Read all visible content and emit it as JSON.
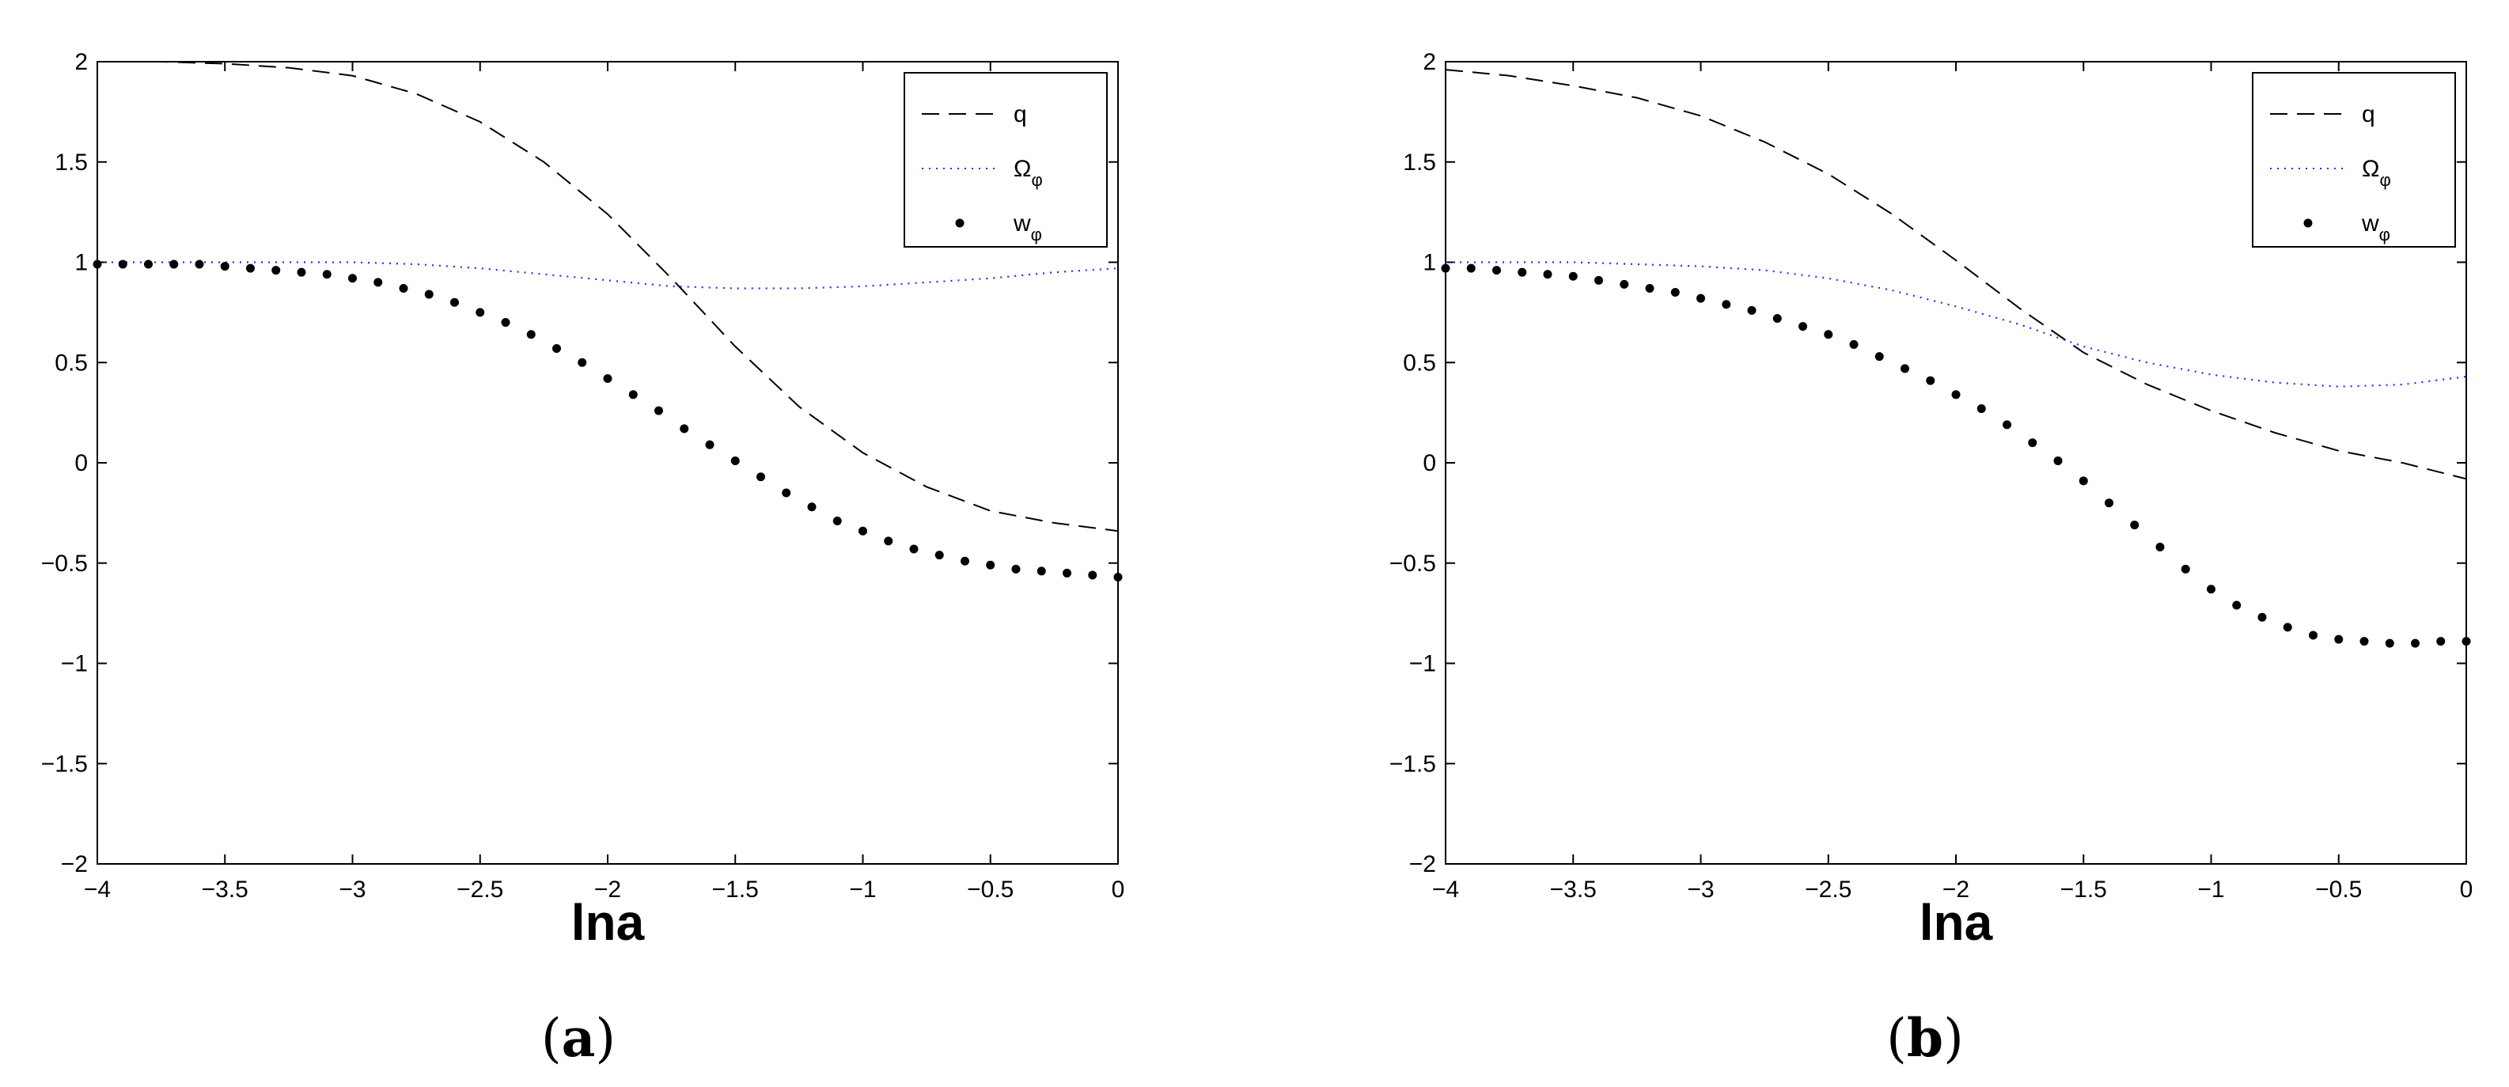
{
  "chart_data": [
    {
      "type": "line",
      "panel_label": "(a)",
      "xlabel": "lna",
      "ylabel": "",
      "xlim": [
        -4,
        0
      ],
      "ylim": [
        -2,
        2
      ],
      "xticks": [
        -4,
        -3.5,
        -3,
        -2.5,
        -2,
        -1.5,
        -1,
        -0.5,
        0
      ],
      "yticks": [
        -2,
        -1.5,
        -1,
        -0.5,
        0,
        0.5,
        1,
        1.5,
        2
      ],
      "grid": false,
      "legend_position": "top-right",
      "x": [
        -4.0,
        -3.75,
        -3.5,
        -3.25,
        -3.0,
        -2.75,
        -2.5,
        -2.25,
        -2.0,
        -1.75,
        -1.5,
        -1.25,
        -1.0,
        -0.75,
        -0.5,
        -0.25,
        0.0
      ],
      "series": [
        {
          "name": "q",
          "style": "dashed",
          "color": "#000000",
          "values": [
            2.0,
            2.0,
            1.99,
            1.97,
            1.93,
            1.84,
            1.7,
            1.5,
            1.24,
            0.92,
            0.58,
            0.28,
            0.05,
            -0.12,
            -0.24,
            -0.3,
            -0.34
          ]
        },
        {
          "name": "Ω_φ",
          "label_main": "Ω",
          "label_sub": "φ",
          "style": "dotted",
          "color": "#2a2aff",
          "values": [
            1.0,
            1.0,
            1.0,
            1.0,
            1.0,
            0.99,
            0.97,
            0.94,
            0.91,
            0.88,
            0.87,
            0.87,
            0.88,
            0.9,
            0.92,
            0.95,
            0.97
          ]
        },
        {
          "name": "w_φ",
          "label_main": "w",
          "label_sub": "φ",
          "style": "dots",
          "color": "#000000",
          "x": [
            -4.0,
            -3.9,
            -3.8,
            -3.7,
            -3.6,
            -3.5,
            -3.4,
            -3.3,
            -3.2,
            -3.1,
            -3.0,
            -2.9,
            -2.8,
            -2.7,
            -2.6,
            -2.5,
            -2.4,
            -2.3,
            -2.2,
            -2.1,
            -2.0,
            -1.9,
            -1.8,
            -1.7,
            -1.6,
            -1.5,
            -1.4,
            -1.3,
            -1.2,
            -1.1,
            -1.0,
            -0.9,
            -0.8,
            -0.7,
            -0.6,
            -0.5,
            -0.4,
            -0.3,
            -0.2,
            -0.1,
            0.0
          ],
          "values": [
            0.99,
            0.99,
            0.99,
            0.99,
            0.99,
            0.98,
            0.97,
            0.96,
            0.95,
            0.94,
            0.92,
            0.9,
            0.87,
            0.84,
            0.8,
            0.75,
            0.7,
            0.64,
            0.57,
            0.5,
            0.42,
            0.34,
            0.26,
            0.17,
            0.09,
            0.01,
            -0.07,
            -0.15,
            -0.22,
            -0.29,
            -0.34,
            -0.39,
            -0.43,
            -0.46,
            -0.49,
            -0.51,
            -0.53,
            -0.54,
            -0.55,
            -0.56,
            -0.57
          ]
        }
      ]
    },
    {
      "type": "line",
      "panel_label": "(b)",
      "xlabel": "lna",
      "ylabel": "",
      "xlim": [
        -4,
        0
      ],
      "ylim": [
        -2,
        2
      ],
      "xticks": [
        -4,
        -3.5,
        -3,
        -2.5,
        -2,
        -1.5,
        -1,
        -0.5,
        0
      ],
      "yticks": [
        -2,
        -1.5,
        -1,
        -0.5,
        0,
        0.5,
        1,
        1.5,
        2
      ],
      "grid": false,
      "legend_position": "top-right",
      "x": [
        -4.0,
        -3.75,
        -3.5,
        -3.25,
        -3.0,
        -2.75,
        -2.5,
        -2.25,
        -2.0,
        -1.75,
        -1.5,
        -1.25,
        -1.0,
        -0.75,
        -0.5,
        -0.25,
        0.0
      ],
      "series": [
        {
          "name": "q",
          "style": "dashed",
          "color": "#000000",
          "values": [
            1.96,
            1.93,
            1.88,
            1.82,
            1.73,
            1.6,
            1.44,
            1.24,
            1.01,
            0.77,
            0.55,
            0.39,
            0.26,
            0.15,
            0.06,
            0.0,
            -0.08
          ]
        },
        {
          "name": "Ω_φ",
          "label_main": "Ω",
          "label_sub": "φ",
          "style": "dotted",
          "color": "#2a2aff",
          "values": [
            1.0,
            1.0,
            1.0,
            0.99,
            0.98,
            0.96,
            0.92,
            0.86,
            0.78,
            0.69,
            0.58,
            0.5,
            0.44,
            0.4,
            0.38,
            0.39,
            0.43
          ]
        },
        {
          "name": "w_φ",
          "label_main": "w",
          "label_sub": "φ",
          "style": "dots",
          "color": "#000000",
          "x": [
            -4.0,
            -3.9,
            -3.8,
            -3.7,
            -3.6,
            -3.5,
            -3.4,
            -3.3,
            -3.2,
            -3.1,
            -3.0,
            -2.9,
            -2.8,
            -2.7,
            -2.6,
            -2.5,
            -2.4,
            -2.3,
            -2.2,
            -2.1,
            -2.0,
            -1.9,
            -1.8,
            -1.7,
            -1.6,
            -1.5,
            -1.4,
            -1.3,
            -1.2,
            -1.1,
            -1.0,
            -0.9,
            -0.8,
            -0.7,
            -0.6,
            -0.5,
            -0.4,
            -0.3,
            -0.2,
            -0.1,
            0.0
          ],
          "values": [
            0.97,
            0.97,
            0.96,
            0.95,
            0.94,
            0.93,
            0.91,
            0.89,
            0.87,
            0.85,
            0.82,
            0.79,
            0.76,
            0.72,
            0.68,
            0.64,
            0.59,
            0.53,
            0.47,
            0.41,
            0.34,
            0.27,
            0.19,
            0.1,
            0.01,
            -0.09,
            -0.2,
            -0.31,
            -0.42,
            -0.53,
            -0.63,
            -0.71,
            -0.77,
            -0.82,
            -0.86,
            -0.88,
            -0.89,
            -0.9,
            -0.9,
            -0.89,
            -0.89
          ]
        }
      ]
    }
  ]
}
